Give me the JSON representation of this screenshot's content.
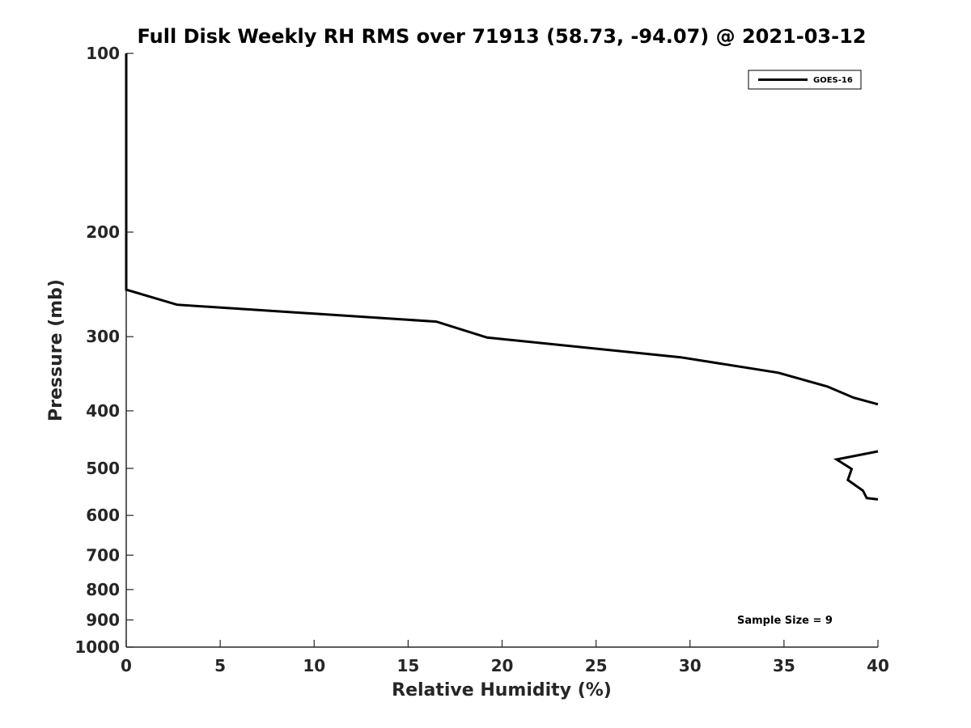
{
  "chart_data": {
    "type": "line",
    "title": "Full Disk Weekly RH RMS over 71913 (58.73, -94.07) @ 2021-03-12",
    "xlabel": "Relative Humidity (%)",
    "ylabel": "Pressure (mb)",
    "xlim": [
      0,
      40
    ],
    "ylim": [
      100,
      1000
    ],
    "yscale": "log",
    "y_reversed": true,
    "grid": false,
    "legend_position": "top-right",
    "x_ticks": [
      0,
      5,
      10,
      15,
      20,
      25,
      30,
      35,
      40
    ],
    "x_tick_labels": [
      "0",
      "5",
      "10",
      "15",
      "20",
      "25",
      "30",
      "35",
      "40"
    ],
    "y_ticks": [
      100,
      200,
      300,
      400,
      500,
      600,
      700,
      800,
      900,
      1000
    ],
    "y_tick_labels": [
      "100",
      "200",
      "300",
      "400",
      "500",
      "600",
      "700",
      "800",
      "900",
      "1000"
    ],
    "series": [
      {
        "name": "GOES-16",
        "color": "#000000",
        "segments": [
          [
            {
              "x": 0,
              "y": 100
            },
            {
              "x": 0,
              "y": 150
            },
            {
              "x": 0,
              "y": 200
            },
            {
              "x": 0,
              "y": 250
            },
            {
              "x": 2.7,
              "y": 265
            },
            {
              "x": 16.5,
              "y": 283
            },
            {
              "x": 19.2,
              "y": 301
            },
            {
              "x": 29.5,
              "y": 325
            },
            {
              "x": 34.7,
              "y": 345
            },
            {
              "x": 37.3,
              "y": 364
            },
            {
              "x": 38.7,
              "y": 380
            },
            {
              "x": 40,
              "y": 390
            }
          ],
          [
            {
              "x": 40,
              "y": 468
            },
            {
              "x": 37.8,
              "y": 483
            },
            {
              "x": 38.6,
              "y": 501
            },
            {
              "x": 38.4,
              "y": 523
            },
            {
              "x": 39.2,
              "y": 545
            },
            {
              "x": 39.4,
              "y": 561
            },
            {
              "x": 40,
              "y": 564
            }
          ]
        ]
      }
    ],
    "annotations": [
      {
        "text": "Sample Size = 9"
      }
    ]
  }
}
